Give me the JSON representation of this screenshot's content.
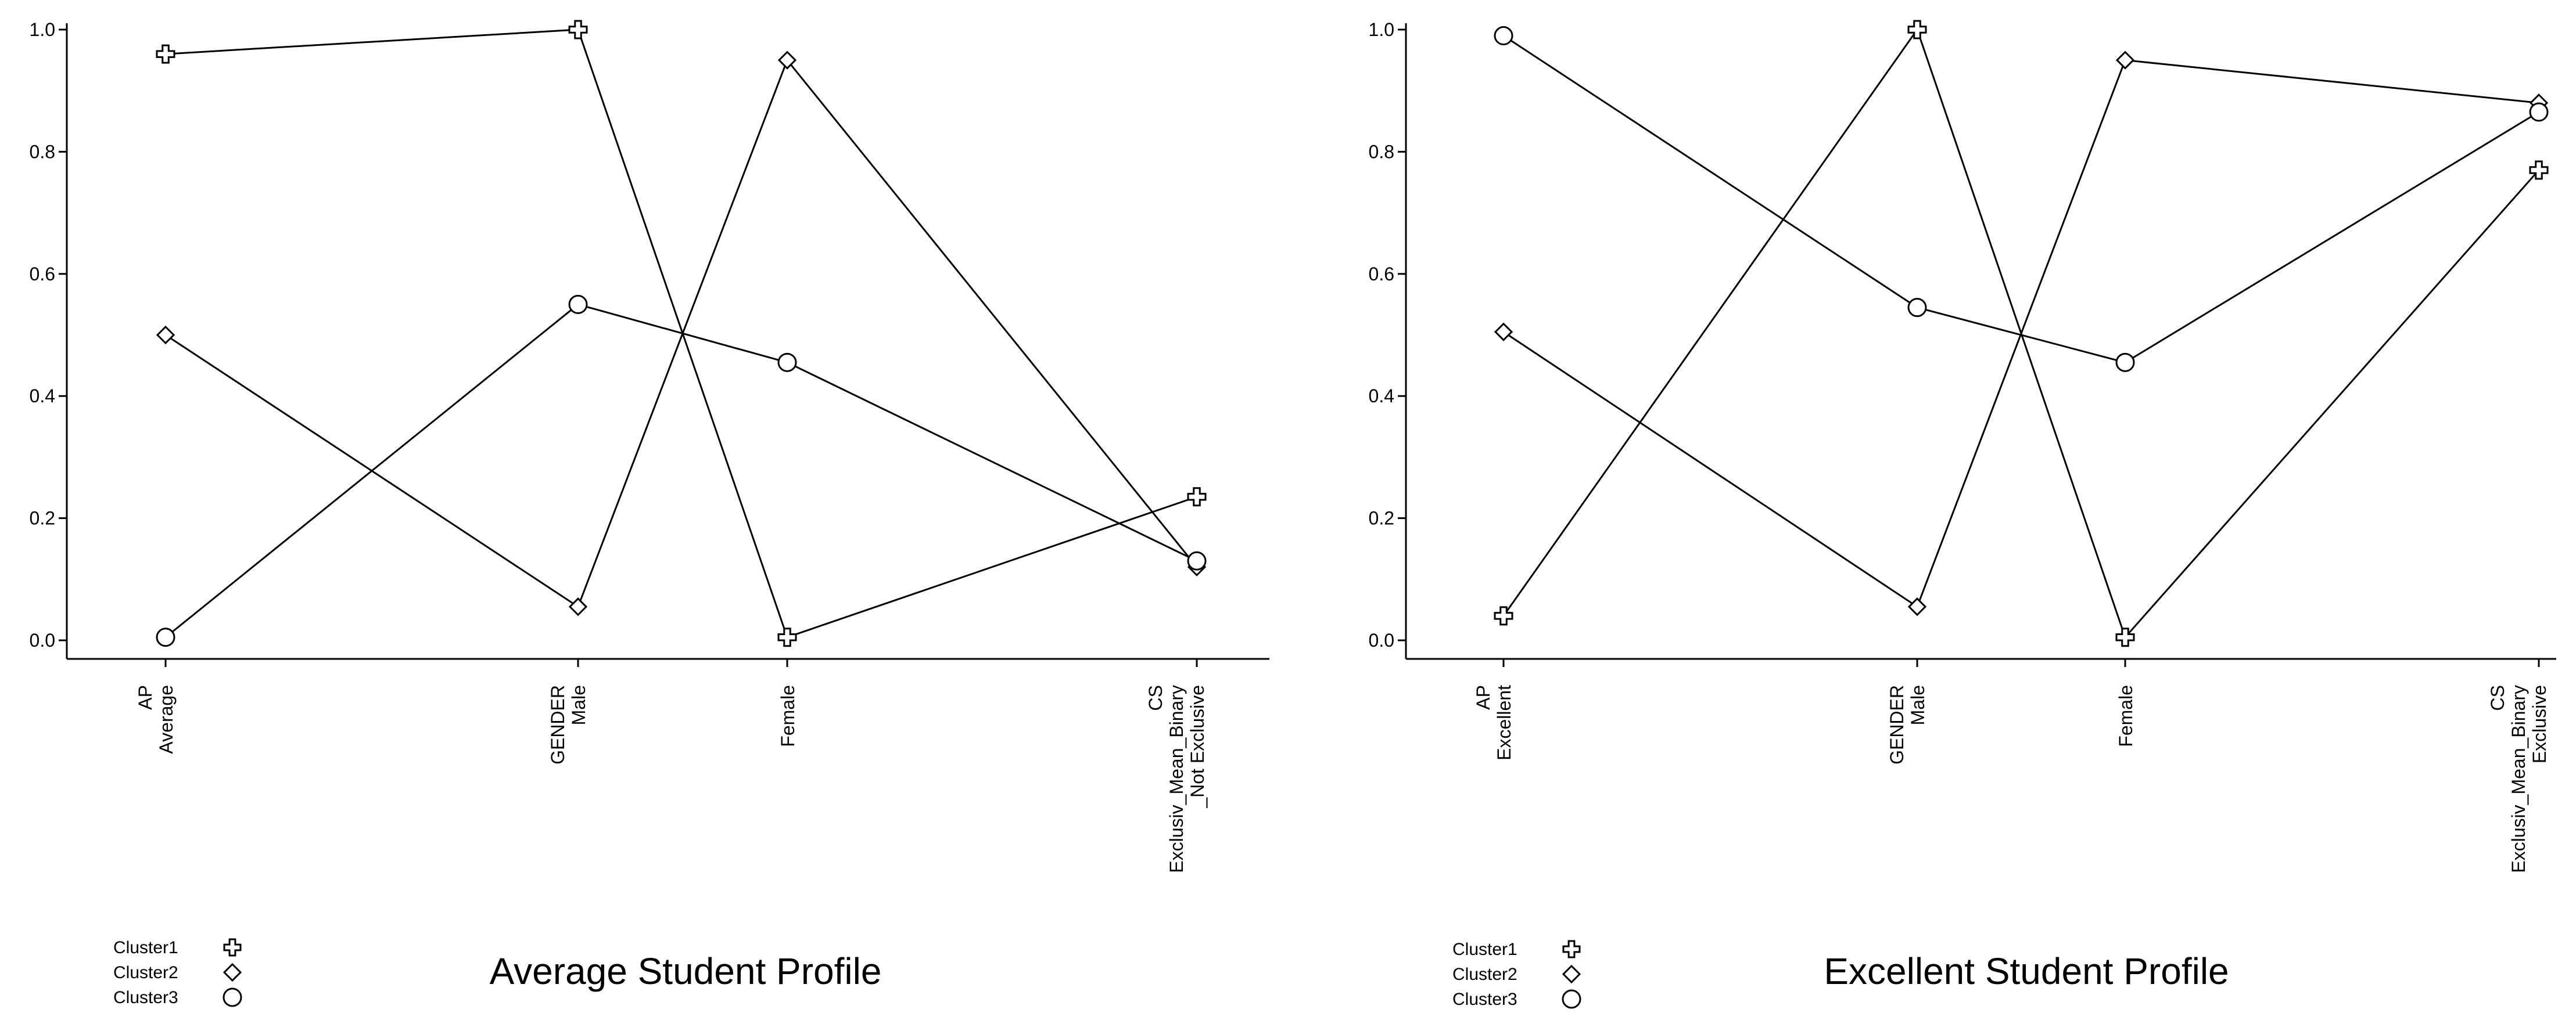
{
  "chart_data": [
    {
      "type": "line",
      "title": "Average Student Profile",
      "ylim": [
        0,
        1.0
      ],
      "y_ticks": [
        "0.0",
        "0.2",
        "0.4",
        "0.6",
        "0.8",
        "1.0"
      ],
      "categories": [
        {
          "lines": [
            "AP",
            "Average"
          ]
        },
        {
          "lines": [
            "GENDER",
            "Male"
          ]
        },
        {
          "lines": [
            "Female"
          ]
        },
        {
          "lines": [
            "CS",
            "Exclusiv_Mean_Binary",
            "_Not Exclusive"
          ]
        }
      ],
      "series": [
        {
          "name": "Cluster1",
          "marker": "cross",
          "values": [
            0.96,
            1.0,
            0.005,
            0.235
          ]
        },
        {
          "name": "Cluster2",
          "marker": "diamond",
          "values": [
            0.5,
            0.055,
            0.95,
            0.12
          ]
        },
        {
          "name": "Cluster3",
          "marker": "circle",
          "values": [
            0.005,
            0.55,
            0.455,
            0.13
          ]
        }
      ]
    },
    {
      "type": "line",
      "title": "Excellent Student Profile",
      "ylim": [
        0,
        1.0
      ],
      "y_ticks": [
        "0.0",
        "0.2",
        "0.4",
        "0.6",
        "0.8",
        "1.0"
      ],
      "categories": [
        {
          "lines": [
            "AP",
            "Excellent"
          ]
        },
        {
          "lines": [
            "GENDER",
            "Male"
          ]
        },
        {
          "lines": [
            "Female"
          ]
        },
        {
          "lines": [
            "CS",
            "Exclusiv_Mean_Binary",
            "Exclusive"
          ]
        }
      ],
      "series": [
        {
          "name": "Cluster1",
          "marker": "cross",
          "values": [
            0.04,
            1.0,
            0.005,
            0.77
          ]
        },
        {
          "name": "Cluster2",
          "marker": "diamond",
          "values": [
            0.505,
            0.055,
            0.95,
            0.88
          ]
        },
        {
          "name": "Cluster3",
          "marker": "circle",
          "values": [
            0.99,
            0.545,
            0.455,
            0.865
          ]
        }
      ]
    }
  ]
}
